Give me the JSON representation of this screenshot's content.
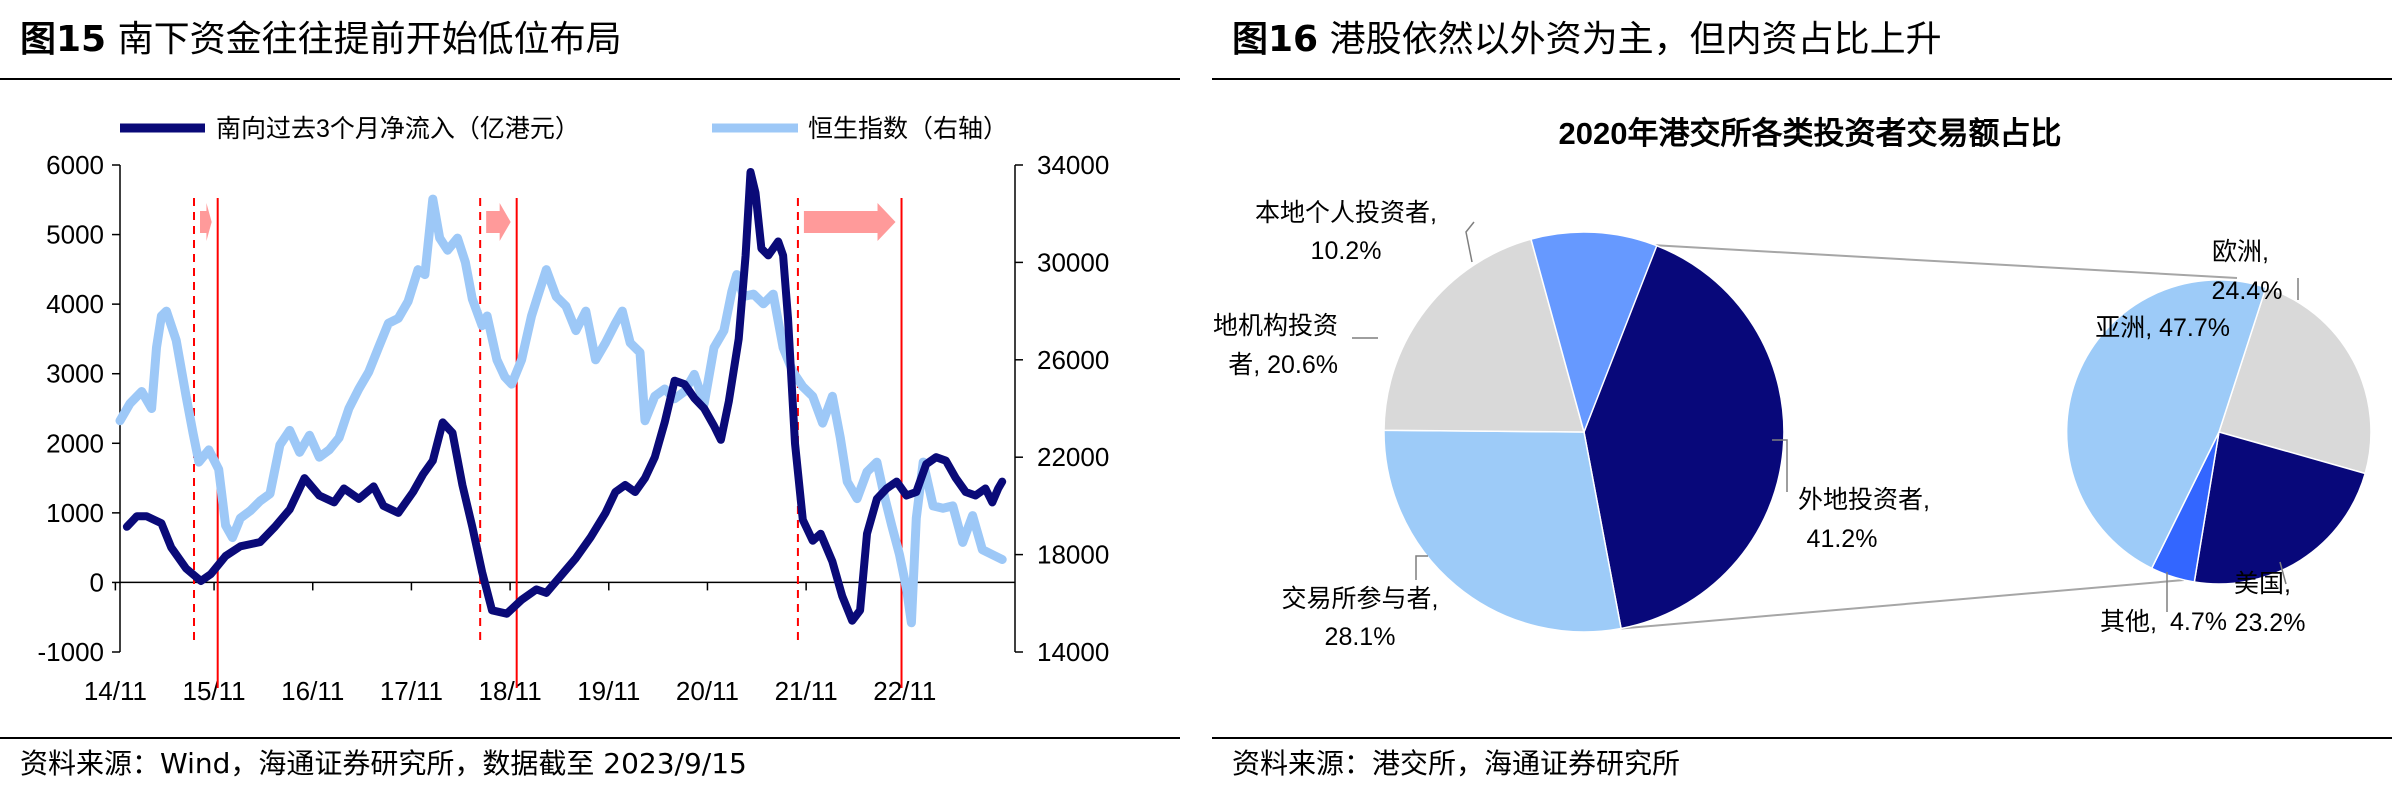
{
  "left": {
    "fig_label": "图15",
    "title": "南下资金往往提前开始低位布局",
    "source": "资料来源：Wind，海通证券研究所，数据截至 2023/9/15"
  },
  "right": {
    "fig_label": "图16",
    "title": "港股依然以外资为主，但内资占比上升",
    "source": "资料来源：港交所，海通证券研究所"
  },
  "colors": {
    "southbound": "#0a0a78",
    "hsi": "#9dc8f7",
    "marker": "#ff0000",
    "arrow": "#ff9a9a",
    "pie_dark": "#08087a",
    "pie_light": "#9dcbf8",
    "pie_gray": "#d9d9d9",
    "pie_mid": "#6699ff",
    "pie_bright": "#3366ff"
  },
  "chart_data": [
    {
      "type": "line",
      "legend": [
        "南向过去3个月净流入（亿港元）",
        "恒生指数（右轴）"
      ],
      "x_ticks": [
        "14/11",
        "15/11",
        "16/11",
        "17/11",
        "18/11",
        "19/11",
        "20/11",
        "21/11",
        "22/11"
      ],
      "y_left": {
        "ticks": [
          "6000",
          "5000",
          "4000",
          "3000",
          "2000",
          "1000",
          "0",
          "-1000"
        ],
        "ylim": [
          -1000,
          6000
        ]
      },
      "y_right": {
        "ticks": [
          "34000",
          "30000",
          "26000",
          "22000",
          "18000",
          "14000"
        ],
        "ylim": [
          14000,
          34000
        ]
      },
      "series": [
        {
          "name": "南向过去3个月净流入（亿港元）",
          "axis": "left",
          "points": [
            [
              2014.95,
              800
            ],
            [
              2015.05,
              950
            ],
            [
              2015.15,
              950
            ],
            [
              2015.3,
              850
            ],
            [
              2015.4,
              500
            ],
            [
              2015.55,
              200
            ],
            [
              2015.7,
              20
            ],
            [
              2015.8,
              120
            ],
            [
              2015.95,
              380
            ],
            [
              2016.1,
              520
            ],
            [
              2016.3,
              580
            ],
            [
              2016.45,
              800
            ],
            [
              2016.6,
              1050
            ],
            [
              2016.75,
              1500
            ],
            [
              2016.9,
              1250
            ],
            [
              2017.05,
              1150
            ],
            [
              2017.15,
              1350
            ],
            [
              2017.3,
              1200
            ],
            [
              2017.45,
              1380
            ],
            [
              2017.55,
              1100
            ],
            [
              2017.7,
              1000
            ],
            [
              2017.85,
              1300
            ],
            [
              2017.95,
              1550
            ],
            [
              2018.05,
              1750
            ],
            [
              2018.15,
              2300
            ],
            [
              2018.25,
              2150
            ],
            [
              2018.35,
              1400
            ],
            [
              2018.45,
              800
            ],
            [
              2018.55,
              150
            ],
            [
              2018.65,
              -400
            ],
            [
              2018.8,
              -450
            ],
            [
              2018.95,
              -250
            ],
            [
              2019.1,
              -100
            ],
            [
              2019.2,
              -150
            ],
            [
              2019.35,
              100
            ],
            [
              2019.5,
              350
            ],
            [
              2019.65,
              650
            ],
            [
              2019.8,
              1000
            ],
            [
              2019.9,
              1300
            ],
            [
              2020.0,
              1400
            ],
            [
              2020.1,
              1300
            ],
            [
              2020.2,
              1500
            ],
            [
              2020.3,
              1800
            ],
            [
              2020.4,
              2300
            ],
            [
              2020.5,
              2900
            ],
            [
              2020.6,
              2850
            ],
            [
              2020.7,
              2650
            ],
            [
              2020.8,
              2500
            ],
            [
              2020.9,
              2250
            ],
            [
              2020.97,
              2050
            ],
            [
              2021.05,
              2600
            ],
            [
              2021.15,
              3500
            ],
            [
              2021.22,
              4700
            ],
            [
              2021.27,
              5900
            ],
            [
              2021.32,
              5600
            ],
            [
              2021.38,
              4800
            ],
            [
              2021.45,
              4700
            ],
            [
              2021.55,
              4900
            ],
            [
              2021.6,
              4700
            ],
            [
              2021.65,
              3800
            ],
            [
              2021.72,
              2000
            ],
            [
              2021.8,
              900
            ],
            [
              2021.9,
              600
            ],
            [
              2021.98,
              700
            ],
            [
              2022.1,
              300
            ],
            [
              2022.2,
              -200
            ],
            [
              2022.3,
              -550
            ],
            [
              2022.38,
              -400
            ],
            [
              2022.45,
              700
            ],
            [
              2022.55,
              1200
            ],
            [
              2022.65,
              1350
            ],
            [
              2022.75,
              1450
            ],
            [
              2022.85,
              1250
            ],
            [
              2022.95,
              1300
            ],
            [
              2023.05,
              1700
            ],
            [
              2023.15,
              1800
            ],
            [
              2023.25,
              1750
            ],
            [
              2023.35,
              1500
            ],
            [
              2023.45,
              1300
            ],
            [
              2023.55,
              1250
            ],
            [
              2023.65,
              1350
            ],
            [
              2023.72,
              1150
            ],
            [
              2023.78,
              1350
            ],
            [
              2023.82,
              1450
            ]
          ]
        },
        {
          "name": "恒生指数（右轴）",
          "axis": "right",
          "points": [
            [
              2014.88,
              23500
            ],
            [
              2014.98,
              24200
            ],
            [
              2015.1,
              24700
            ],
            [
              2015.2,
              24000
            ],
            [
              2015.25,
              26500
            ],
            [
              2015.3,
              27800
            ],
            [
              2015.35,
              28000
            ],
            [
              2015.45,
              26800
            ],
            [
              2015.55,
              24500
            ],
            [
              2015.62,
              23000
            ],
            [
              2015.68,
              21800
            ],
            [
              2015.78,
              22300
            ],
            [
              2015.88,
              21500
            ],
            [
              2015.95,
              19200
            ],
            [
              2016.02,
              18700
            ],
            [
              2016.1,
              19500
            ],
            [
              2016.2,
              19800
            ],
            [
              2016.3,
              20200
            ],
            [
              2016.4,
              20500
            ],
            [
              2016.5,
              22500
            ],
            [
              2016.6,
              23100
            ],
            [
              2016.7,
              22200
            ],
            [
              2016.8,
              22900
            ],
            [
              2016.9,
              22000
            ],
            [
              2017.0,
              22300
            ],
            [
              2017.1,
              22800
            ],
            [
              2017.2,
              24000
            ],
            [
              2017.3,
              24800
            ],
            [
              2017.4,
              25500
            ],
            [
              2017.5,
              26500
            ],
            [
              2017.6,
              27500
            ],
            [
              2017.7,
              27700
            ],
            [
              2017.8,
              28400
            ],
            [
              2017.9,
              29700
            ],
            [
              2017.97,
              29500
            ],
            [
              2018.05,
              32600
            ],
            [
              2018.12,
              31000
            ],
            [
              2018.2,
              30500
            ],
            [
              2018.3,
              31000
            ],
            [
              2018.38,
              30000
            ],
            [
              2018.45,
              28500
            ],
            [
              2018.55,
              27400
            ],
            [
              2018.6,
              27800
            ],
            [
              2018.7,
              26000
            ],
            [
              2018.78,
              25300
            ],
            [
              2018.85,
              25000
            ],
            [
              2018.95,
              26000
            ],
            [
              2019.05,
              27800
            ],
            [
              2019.12,
              28700
            ],
            [
              2019.2,
              29700
            ],
            [
              2019.3,
              28600
            ],
            [
              2019.4,
              28200
            ],
            [
              2019.5,
              27200
            ],
            [
              2019.6,
              28000
            ],
            [
              2019.7,
              26000
            ],
            [
              2019.8,
              26700
            ],
            [
              2019.9,
              27500
            ],
            [
              2019.97,
              28000
            ],
            [
              2020.05,
              26700
            ],
            [
              2020.15,
              26300
            ],
            [
              2020.2,
              23500
            ],
            [
              2020.3,
              24500
            ],
            [
              2020.4,
              24800
            ],
            [
              2020.5,
              24400
            ],
            [
              2020.6,
              24700
            ],
            [
              2020.7,
              25400
            ],
            [
              2020.8,
              24200
            ],
            [
              2020.9,
              26500
            ],
            [
              2021.0,
              27200
            ],
            [
              2021.08,
              28800
            ],
            [
              2021.13,
              29500
            ],
            [
              2021.2,
              28600
            ],
            [
              2021.3,
              28700
            ],
            [
              2021.4,
              28300
            ],
            [
              2021.5,
              28700
            ],
            [
              2021.6,
              26500
            ],
            [
              2021.7,
              25500
            ],
            [
              2021.8,
              24900
            ],
            [
              2021.9,
              24500
            ],
            [
              2022.0,
              23400
            ],
            [
              2022.1,
              24500
            ],
            [
              2022.18,
              22800
            ],
            [
              2022.25,
              21000
            ],
            [
              2022.35,
              20300
            ],
            [
              2022.45,
              21400
            ],
            [
              2022.55,
              21800
            ],
            [
              2022.62,
              20500
            ],
            [
              2022.7,
              19200
            ],
            [
              2022.78,
              18000
            ],
            [
              2022.85,
              16600
            ],
            [
              2022.9,
              15200
            ],
            [
              2022.95,
              19500
            ],
            [
              2023.02,
              21800
            ],
            [
              2023.12,
              20000
            ],
            [
              2023.22,
              19900
            ],
            [
              2023.32,
              20000
            ],
            [
              2023.42,
              18500
            ],
            [
              2023.52,
              19600
            ],
            [
              2023.62,
              18200
            ],
            [
              2023.72,
              18000
            ],
            [
              2023.82,
              17800
            ]
          ]
        }
      ],
      "markers": [
        {
          "dashed_x": 2015.63,
          "solid_x": 2015.87
        },
        {
          "dashed_x": 2018.53,
          "solid_x": 2018.9
        },
        {
          "dashed_x": 2021.75,
          "solid_x": 2022.8
        }
      ]
    },
    {
      "type": "pie",
      "title": "2020年港交所各类投资者交易额占比",
      "slices": [
        {
          "label": "外地投资者",
          "value_text": "41.2%",
          "value": 41.2
        },
        {
          "label": "交易所参与者",
          "value_text": "28.1%",
          "value": 28.1
        },
        {
          "label": "本地机构投资者",
          "label_lines": [
            "本地机构投资",
            "者, 20.6%"
          ],
          "value_text": "20.6%",
          "value": 20.6
        },
        {
          "label": "本地个人投资者",
          "value_text": "10.2%",
          "value": 10.2
        }
      ],
      "sub_pie": {
        "source_slice": "外地投资者",
        "slices": [
          {
            "label": "欧洲",
            "value_text": "24.4%",
            "value": 24.4
          },
          {
            "label": "美国",
            "value_text": "23.2%",
            "value": 23.2
          },
          {
            "label": "其他",
            "value_text": "4.7%",
            "value": 4.7
          },
          {
            "label": "亚洲",
            "value_text": "47.7%",
            "value": 47.7
          }
        ]
      }
    }
  ]
}
